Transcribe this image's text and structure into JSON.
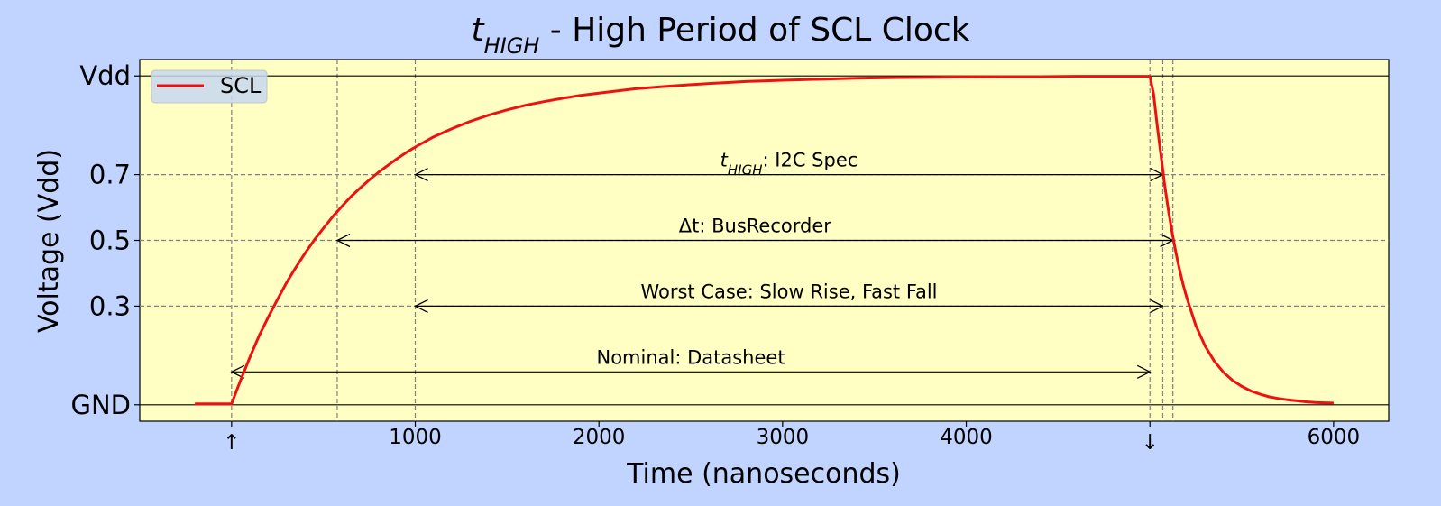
{
  "chart_data": {
    "type": "line",
    "title": {
      "main_italic": "t",
      "main_sub": "HIGH",
      "rest": " - High Period of SCL Clock"
    },
    "xlabel": "Time (nanoseconds)",
    "ylabel": "Voltage (Vdd)",
    "xlim": [
      -500,
      6300
    ],
    "ylim": [
      -0.05,
      1.05
    ],
    "grid": false,
    "colors": {
      "figure_bg": "#c0d4ff",
      "plot_bg": "#ffffc3",
      "scl_line": "#ee1111"
    },
    "x_ticks": [
      {
        "value": 0,
        "label": "↑"
      },
      {
        "value": 1000,
        "label": "1000"
      },
      {
        "value": 2000,
        "label": "2000"
      },
      {
        "value": 3000,
        "label": "3000"
      },
      {
        "value": 4000,
        "label": "4000"
      },
      {
        "value": 5000,
        "label": "↓"
      },
      {
        "value": 6000,
        "label": "6000"
      }
    ],
    "y_ticks": [
      {
        "value": 0,
        "label": "GND"
      },
      {
        "value": 0.3,
        "label": "0.3"
      },
      {
        "value": 0.5,
        "label": "0.5"
      },
      {
        "value": 0.7,
        "label": "0.7"
      },
      {
        "value": 1.0,
        "label": "Vdd"
      }
    ],
    "legend": {
      "placement": "top-left",
      "entries": [
        {
          "label": "SCL"
        }
      ]
    },
    "series": [
      {
        "name": "SCL",
        "x": [
          -200,
          0,
          50,
          100,
          150,
          200,
          250,
          300,
          350,
          400,
          450,
          500,
          550,
          600,
          650,
          700,
          750,
          800,
          850,
          900,
          950,
          1000,
          1100,
          1200,
          1300,
          1400,
          1500,
          1600,
          1700,
          1800,
          1900,
          2000,
          2200,
          2400,
          2600,
          2800,
          3000,
          3200,
          3400,
          3600,
          3800,
          4000,
          4200,
          4400,
          4600,
          4800,
          5000,
          5020,
          5040,
          5060,
          5080,
          5100,
          5120,
          5140,
          5160,
          5180,
          5200,
          5250,
          5300,
          5350,
          5400,
          5450,
          5500,
          5550,
          5600,
          5650,
          5700,
          5750,
          5800,
          5850,
          5900,
          5950,
          6000
        ],
        "y": [
          0.003,
          0.003,
          0.076,
          0.145,
          0.21,
          0.267,
          0.321,
          0.372,
          0.418,
          0.461,
          0.501,
          0.537,
          0.572,
          0.603,
          0.633,
          0.659,
          0.684,
          0.707,
          0.728,
          0.748,
          0.767,
          0.784,
          0.815,
          0.84,
          0.862,
          0.881,
          0.897,
          0.911,
          0.922,
          0.932,
          0.941,
          0.948,
          0.961,
          0.97,
          0.977,
          0.983,
          0.987,
          0.99,
          0.993,
          0.995,
          0.996,
          0.997,
          0.998,
          0.998,
          0.999,
          0.999,
          0.999,
          0.944,
          0.846,
          0.76,
          0.669,
          0.593,
          0.526,
          0.467,
          0.414,
          0.367,
          0.326,
          0.241,
          0.179,
          0.133,
          0.099,
          0.074,
          0.056,
          0.042,
          0.032,
          0.024,
          0.019,
          0.015,
          0.012,
          0.009,
          0.007,
          0.006,
          0.005
        ]
      }
    ],
    "reference_lines": {
      "horizontal_solid": [
        0,
        1.0
      ],
      "horizontal_dashed": [
        0.3,
        0.5,
        0.7
      ],
      "vertical_dashed": [
        0,
        575,
        1000,
        5000,
        5070,
        5125
      ]
    },
    "annotations": [
      {
        "label_italic": "t",
        "label_sub": "HIGH",
        "label_rest": ": I2C Spec",
        "x_start": 1000,
        "x_end": 5070,
        "y": 0.7
      },
      {
        "label": "Δt: BusRecorder",
        "x_start": 575,
        "x_end": 5125,
        "y": 0.5
      },
      {
        "label": "Worst Case: Slow Rise, Fast Fall",
        "x_start": 1000,
        "x_end": 5070,
        "y": 0.3
      },
      {
        "label": "Nominal: Datasheet",
        "x_start": 0,
        "x_end": 5000,
        "y": 0.1
      }
    ]
  }
}
